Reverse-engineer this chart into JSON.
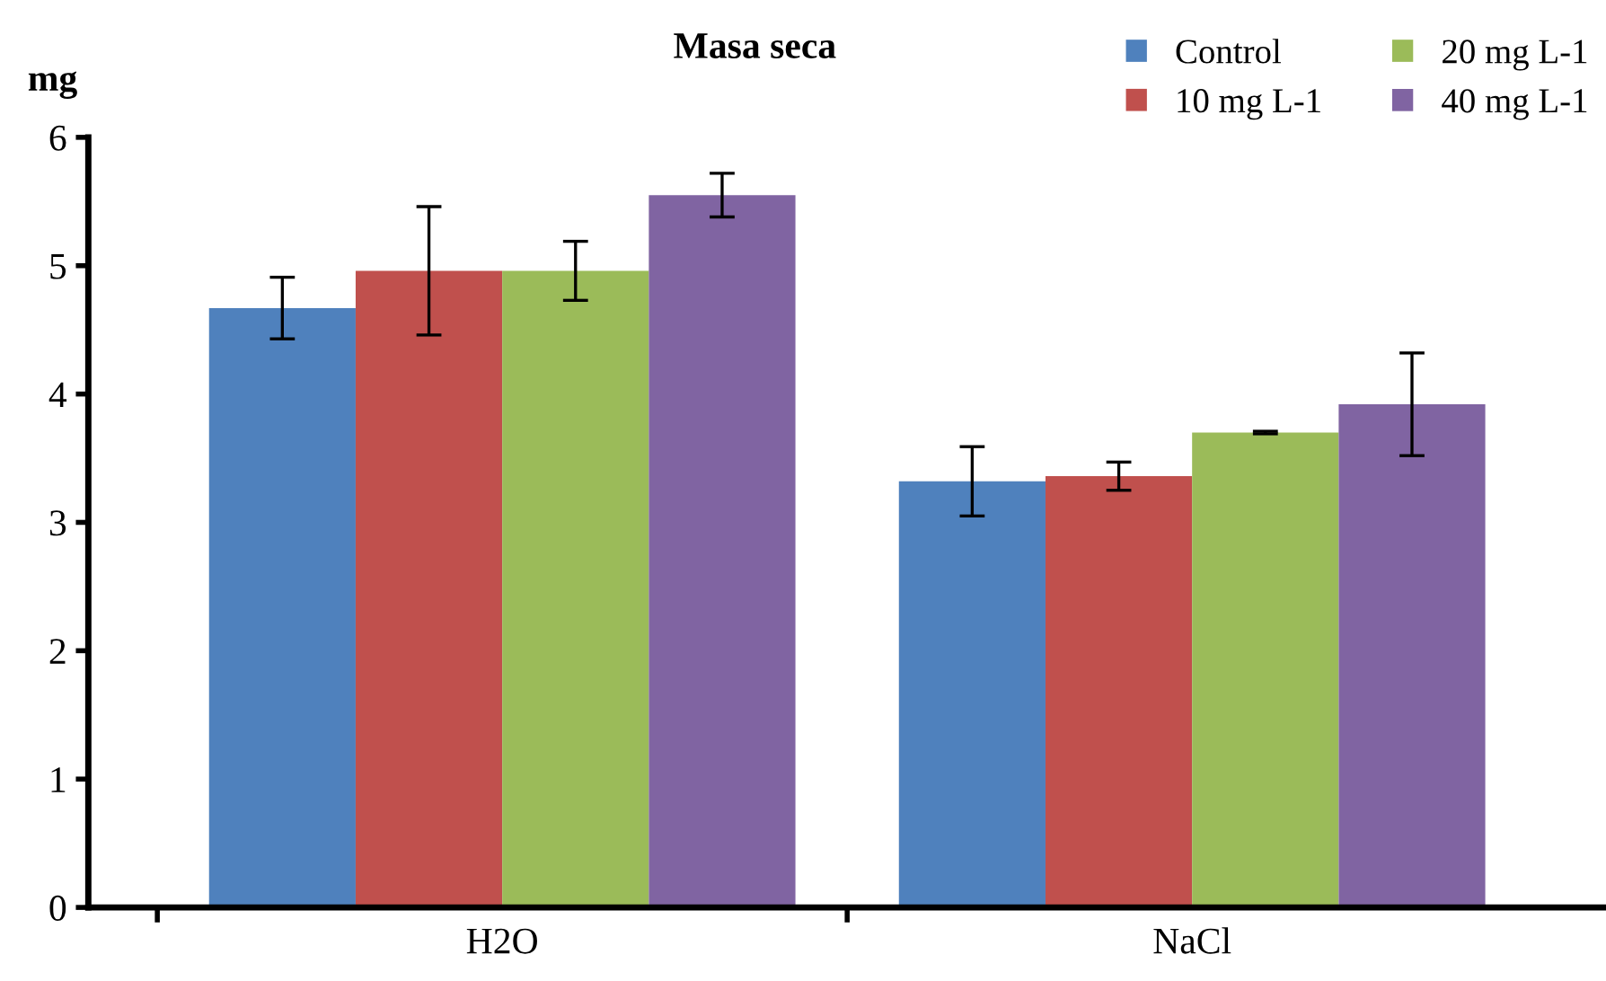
{
  "chart_data": {
    "type": "bar",
    "title": "Masa seca",
    "ylabel": "mg",
    "categories": [
      "H2O",
      "NaCl"
    ],
    "series": [
      {
        "name": "Control",
        "color": "#4f81bd",
        "values": [
          4.67,
          3.32
        ],
        "errors": [
          0.24,
          0.27
        ]
      },
      {
        "name": "10 mg L-1",
        "color": "#c0504d",
        "values": [
          4.96,
          3.36
        ],
        "errors": [
          0.5,
          0.11
        ]
      },
      {
        "name": "20 mg L-1",
        "color": "#9bbb59",
        "values": [
          4.96,
          3.7
        ],
        "errors": [
          0.23,
          0.01
        ]
      },
      {
        "name": "40 mg L-1",
        "color": "#8064a2",
        "values": [
          5.55,
          3.92
        ],
        "errors": [
          0.17,
          0.4
        ]
      }
    ],
    "ylim": [
      0,
      6
    ],
    "yticks": [
      0,
      1,
      2,
      3,
      4,
      5,
      6
    ],
    "grid": false,
    "legend": "top right"
  }
}
